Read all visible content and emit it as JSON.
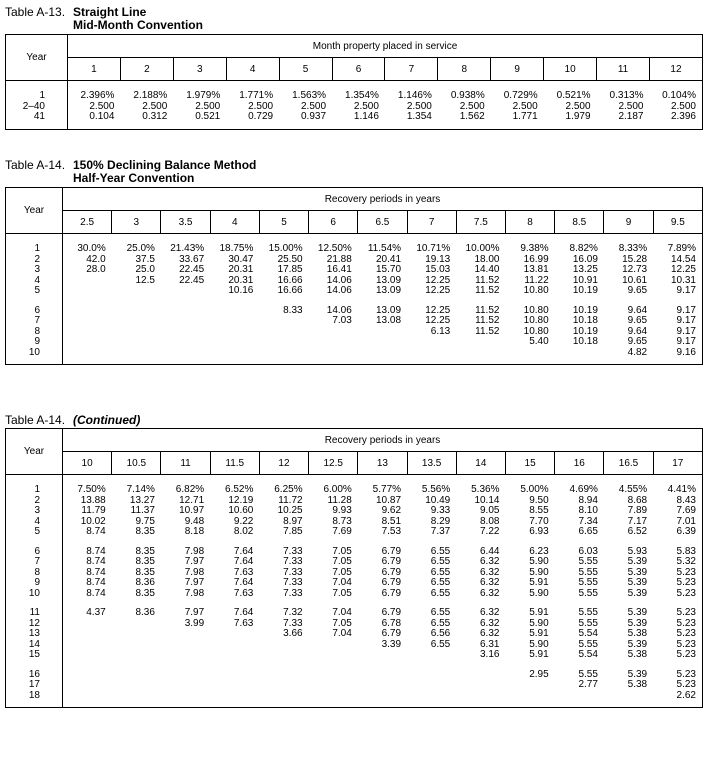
{
  "tables": [
    {
      "number": "Table A-13.",
      "title_lines": [
        "Straight Line",
        "Mid-Month Convention"
      ],
      "year_label": "Year",
      "group_header": "Month property placed in service",
      "years": [
        "1",
        "2–40",
        "41"
      ],
      "columns": [
        {
          "header": "1",
          "values": [
            "2.396%",
            "2.500",
            "0.104"
          ]
        },
        {
          "header": "2",
          "values": [
            "2.188%",
            "2.500",
            "0.312"
          ]
        },
        {
          "header": "3",
          "values": [
            "1.979%",
            "2.500",
            "0.521"
          ]
        },
        {
          "header": "4",
          "values": [
            "1.771%",
            "2.500",
            "0.729"
          ]
        },
        {
          "header": "5",
          "values": [
            "1.563%",
            "2.500",
            "0.937"
          ]
        },
        {
          "header": "6",
          "values": [
            "1.354%",
            "2.500",
            "1.146"
          ]
        },
        {
          "header": "7",
          "values": [
            "1.146%",
            "2.500",
            "1.354"
          ]
        },
        {
          "header": "8",
          "values": [
            "0.938%",
            "2.500",
            "1.562"
          ]
        },
        {
          "header": "9",
          "values": [
            "0.729%",
            "2.500",
            "1.771"
          ]
        },
        {
          "header": "10",
          "values": [
            "0.521%",
            "2.500",
            "1.979"
          ]
        },
        {
          "header": "11",
          "values": [
            "0.313%",
            "2.500",
            "2.187"
          ]
        },
        {
          "header": "12",
          "values": [
            "0.104%",
            "2.500",
            "2.396"
          ]
        }
      ]
    },
    {
      "number": "Table A-14.",
      "title_lines": [
        "150% Declining Balance Method",
        "Half-Year Convention"
      ],
      "year_label": "Year",
      "group_header": "Recovery periods in years",
      "years": [
        "1",
        "2",
        "3",
        "4",
        "5",
        "6",
        "7",
        "8",
        "9",
        "10"
      ],
      "columns": [
        {
          "header": "2.5",
          "values": [
            "30.0%",
            "42.0",
            "28.0"
          ]
        },
        {
          "header": "3",
          "values": [
            "25.0%",
            "37.5",
            "25.0",
            "12.5"
          ]
        },
        {
          "header": "3.5",
          "values": [
            "21.43%",
            "33.67",
            "22.45",
            "22.45"
          ]
        },
        {
          "header": "4",
          "values": [
            "18.75%",
            "30.47",
            "20.31",
            "20.31",
            "10.16"
          ]
        },
        {
          "header": "5",
          "values": [
            "15.00%",
            "25.50",
            "17.85",
            "16.66",
            "16.66",
            "8.33"
          ]
        },
        {
          "header": "6",
          "values": [
            "12.50%",
            "21.88",
            "16.41",
            "14.06",
            "14.06",
            "14.06",
            "7.03"
          ]
        },
        {
          "header": "6.5",
          "values": [
            "11.54%",
            "20.41",
            "15.70",
            "13.09",
            "13.09",
            "13.09",
            "13.08"
          ]
        },
        {
          "header": "7",
          "values": [
            "10.71%",
            "19.13",
            "15.03",
            "12.25",
            "12.25",
            "12.25",
            "12.25",
            "6.13"
          ]
        },
        {
          "header": "7.5",
          "values": [
            "10.00%",
            "18.00",
            "14.40",
            "11.52",
            "11.52",
            "11.52",
            "11.52",
            "11.52"
          ]
        },
        {
          "header": "8",
          "values": [
            "9.38%",
            "16.99",
            "13.81",
            "11.22",
            "10.80",
            "10.80",
            "10.80",
            "10.80",
            "5.40"
          ]
        },
        {
          "header": "8.5",
          "values": [
            "8.82%",
            "16.09",
            "13.25",
            "10.91",
            "10.19",
            "10.19",
            "10.18",
            "10.19",
            "10.18"
          ]
        },
        {
          "header": "9",
          "values": [
            "8.33%",
            "15.28",
            "12.73",
            "10.61",
            "9.65",
            "9.64",
            "9.65",
            "9.64",
            "9.65",
            "4.82"
          ]
        },
        {
          "header": "9.5",
          "values": [
            "7.89%",
            "14.54",
            "12.25",
            "10.31",
            "9.17",
            "9.17",
            "9.17",
            "9.17",
            "9.17",
            "9.16"
          ]
        }
      ]
    },
    {
      "number": "Table A-14.",
      "note": "(Continued)",
      "year_label": "Year",
      "group_header": "Recovery periods in years",
      "years": [
        "1",
        "2",
        "3",
        "4",
        "5",
        "6",
        "7",
        "8",
        "9",
        "10",
        "11",
        "12",
        "13",
        "14",
        "15",
        "16",
        "17",
        "18"
      ],
      "columns": [
        {
          "header": "10",
          "values": [
            "7.50%",
            "13.88",
            "11.79",
            "10.02",
            "8.74",
            "8.74",
            "8.74",
            "8.74",
            "8.74",
            "8.74",
            "4.37"
          ]
        },
        {
          "header": "10.5",
          "values": [
            "7.14%",
            "13.27",
            "11.37",
            "9.75",
            "8.35",
            "8.35",
            "8.35",
            "8.35",
            "8.36",
            "8.35",
            "8.36"
          ]
        },
        {
          "header": "11",
          "values": [
            "6.82%",
            "12.71",
            "10.97",
            "9.48",
            "8.18",
            "7.98",
            "7.97",
            "7.98",
            "7.97",
            "7.98",
            "7.97",
            "3.99"
          ]
        },
        {
          "header": "11.5",
          "values": [
            "6.52%",
            "12.19",
            "10.60",
            "9.22",
            "8.02",
            "7.64",
            "7.64",
            "7.63",
            "7.64",
            "7.63",
            "7.64",
            "7.63"
          ]
        },
        {
          "header": "12",
          "values": [
            "6.25%",
            "11.72",
            "10.25",
            "8.97",
            "7.85",
            "7.33",
            "7.33",
            "7.33",
            "7.33",
            "7.33",
            "7.32",
            "7.33",
            "3.66"
          ]
        },
        {
          "header": "12.5",
          "values": [
            "6.00%",
            "11.28",
            "9.93",
            "8.73",
            "7.69",
            "7.05",
            "7.05",
            "7.05",
            "7.04",
            "7.05",
            "7.04",
            "7.05",
            "7.04"
          ]
        },
        {
          "header": "13",
          "values": [
            "5.77%",
            "10.87",
            "9.62",
            "8.51",
            "7.53",
            "6.79",
            "6.79",
            "6.79",
            "6.79",
            "6.79",
            "6.79",
            "6.78",
            "6.79",
            "3.39"
          ]
        },
        {
          "header": "13.5",
          "values": [
            "5.56%",
            "10.49",
            "9.33",
            "8.29",
            "7.37",
            "6.55",
            "6.55",
            "6.55",
            "6.55",
            "6.55",
            "6.55",
            "6.55",
            "6.56",
            "6.55"
          ]
        },
        {
          "header": "14",
          "values": [
            "5.36%",
            "10.14",
            "9.05",
            "8.08",
            "7.22",
            "6.44",
            "6.32",
            "6.32",
            "6.32",
            "6.32",
            "6.32",
            "6.32",
            "6.32",
            "6.31",
            "3.16"
          ]
        },
        {
          "header": "15",
          "values": [
            "5.00%",
            "9.50",
            "8.55",
            "7.70",
            "6.93",
            "6.23",
            "5.90",
            "5.90",
            "5.91",
            "5.90",
            "5.91",
            "5.90",
            "5.91",
            "5.90",
            "5.91",
            "2.95"
          ]
        },
        {
          "header": "16",
          "values": [
            "4.69%",
            "8.94",
            "8.10",
            "7.34",
            "6.65",
            "6.03",
            "5.55",
            "5.55",
            "5.55",
            "5.55",
            "5.55",
            "5.55",
            "5.54",
            "5.55",
            "5.54",
            "5.55",
            "2.77"
          ]
        },
        {
          "header": "16.5",
          "values": [
            "4.55%",
            "8.68",
            "7.89",
            "7.17",
            "6.52",
            "5.93",
            "5.39",
            "5.39",
            "5.39",
            "5.39",
            "5.39",
            "5.39",
            "5.38",
            "5.39",
            "5.38",
            "5.39",
            "5.38"
          ]
        },
        {
          "header": "17",
          "values": [
            "4.41%",
            "8.43",
            "7.69",
            "7.01",
            "6.39",
            "5.83",
            "5.32",
            "5.23",
            "5.23",
            "5.23",
            "5.23",
            "5.23",
            "5.23",
            "5.23",
            "5.23",
            "5.23",
            "5.23",
            "2.62"
          ]
        }
      ]
    }
  ]
}
